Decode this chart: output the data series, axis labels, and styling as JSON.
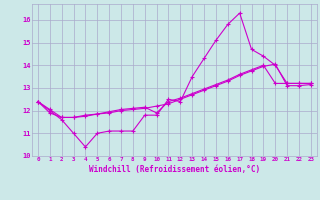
{
  "xlabel": "Windchill (Refroidissement éolien,°C)",
  "background_color": "#cce8e8",
  "grid_color": "#aaaacc",
  "line_color": "#cc00cc",
  "xlim": [
    -0.5,
    23.5
  ],
  "ylim": [
    10,
    16.7
  ],
  "yticks": [
    10,
    11,
    12,
    13,
    14,
    15,
    16
  ],
  "xticks": [
    0,
    1,
    2,
    3,
    4,
    5,
    6,
    7,
    8,
    9,
    10,
    11,
    12,
    13,
    14,
    15,
    16,
    17,
    18,
    19,
    20,
    21,
    22,
    23
  ],
  "line1_x": [
    0,
    1,
    2,
    3,
    4,
    5,
    6,
    7,
    8,
    9,
    10,
    11,
    12,
    13,
    14,
    15,
    16,
    17,
    18,
    19,
    20,
    21,
    22,
    23
  ],
  "line1_y": [
    12.4,
    12.0,
    11.6,
    11.0,
    10.4,
    11.0,
    11.1,
    11.1,
    11.1,
    11.8,
    11.8,
    12.5,
    12.4,
    13.5,
    14.3,
    15.1,
    15.8,
    16.3,
    14.7,
    14.4,
    14.0,
    13.2,
    13.2,
    13.2
  ],
  "line2_x": [
    0,
    1,
    2,
    3,
    4,
    5,
    6,
    7,
    8,
    9,
    10,
    11,
    12,
    13,
    14,
    15,
    16,
    17,
    18,
    19,
    20,
    21,
    22,
    23
  ],
  "line2_y": [
    12.4,
    11.9,
    11.7,
    11.7,
    11.8,
    11.85,
    11.9,
    12.0,
    12.05,
    12.1,
    12.2,
    12.3,
    12.5,
    12.7,
    12.9,
    13.1,
    13.3,
    13.55,
    13.75,
    13.95,
    14.05,
    13.1,
    13.1,
    13.15
  ],
  "line3_x": [
    0,
    1,
    2,
    3,
    4,
    5,
    6,
    7,
    8,
    9,
    10,
    11,
    12,
    13,
    14,
    15,
    16,
    17,
    18,
    19,
    20,
    21,
    22,
    23
  ],
  "line3_y": [
    12.4,
    12.05,
    11.7,
    11.7,
    11.75,
    11.85,
    11.95,
    12.05,
    12.1,
    12.15,
    11.9,
    12.4,
    12.55,
    12.75,
    12.95,
    13.15,
    13.35,
    13.6,
    13.8,
    14.0,
    13.2,
    13.2,
    13.2,
    13.2
  ]
}
